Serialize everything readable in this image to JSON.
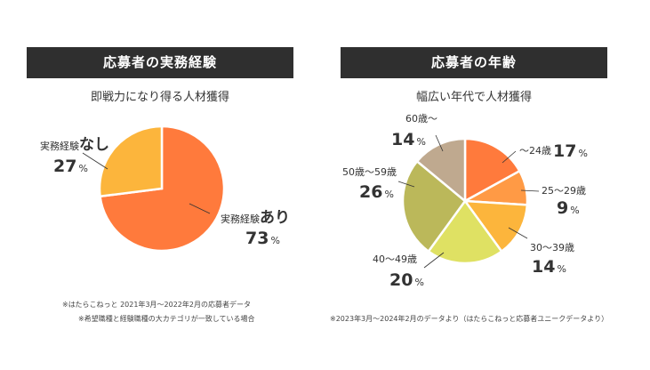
{
  "left": {
    "header": "応募者の実務経験",
    "subtitle": "即戦力になり得る人材獲得",
    "notes": [
      "※はたらこねっと 2021年3月～2022年2月の応募者データ",
      "※希望職種と経験職種の大カテゴリが一致している場合"
    ]
  },
  "right": {
    "header": "応募者の年齢",
    "subtitle": "幅広い年代で人材獲得",
    "notes": [
      "※2023年3月～2024年2月のデータより（はたらこねっと応募者ユニークデータより）"
    ]
  },
  "chart_data": [
    {
      "type": "pie",
      "slices": [
        {
          "label_small": "実務経験",
          "label_large": "あり",
          "value": 73,
          "unit": "%",
          "color": "#ff7a3c"
        },
        {
          "label_small": "実務経験",
          "label_large": "なし",
          "value": 27,
          "unit": "%",
          "color": "#fcb53c"
        }
      ]
    },
    {
      "type": "pie",
      "slices": [
        {
          "label": "～24歳",
          "value": 17,
          "unit": "%",
          "color": "#ff7a3c"
        },
        {
          "label": "25～29歳",
          "value": 9,
          "unit": "%",
          "color": "#ff9a45"
        },
        {
          "label": "30～39歳",
          "value": 14,
          "unit": "%",
          "color": "#fcb53c"
        },
        {
          "label": "40～49歳",
          "value": 20,
          "unit": "%",
          "color": "#dfe163"
        },
        {
          "label": "50歳～59歳",
          "value": 26,
          "unit": "%",
          "color": "#bbb85a"
        },
        {
          "label": "60歳～",
          "value": 14,
          "unit": "%",
          "color": "#bfa98f"
        }
      ]
    }
  ]
}
